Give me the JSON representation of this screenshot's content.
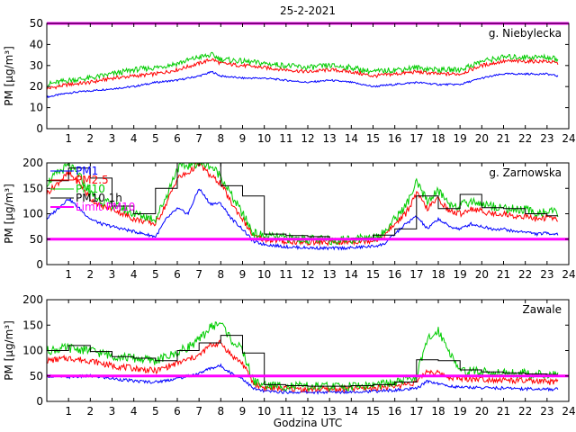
{
  "title": "25-2-2021",
  "xlabel": "Godzina UTC",
  "colors": {
    "PM1": "#0000ff",
    "PM2.5": "#ff0000",
    "PM10": "#00cc00",
    "PM10_1h": "#000000",
    "limit": "#ff00ff"
  },
  "chart_data": [
    {
      "type": "line",
      "station": "g. Niebylecka",
      "ylabel": "PM [µg/m³]",
      "ylim": [
        0,
        50
      ],
      "yticks": [
        0,
        10,
        20,
        30,
        40,
        50
      ],
      "xlim": [
        0,
        24
      ],
      "xticks": [
        1,
        2,
        3,
        4,
        5,
        6,
        7,
        8,
        9,
        10,
        11,
        12,
        13,
        14,
        15,
        16,
        17,
        18,
        19,
        20,
        21,
        22,
        23,
        24
      ],
      "limit_line": 50,
      "series": [
        {
          "name": "PM1",
          "color": "#0000ff",
          "x": [
            0,
            1,
            2,
            3,
            4,
            5,
            6,
            7,
            7.6,
            8,
            9,
            10,
            11,
            12,
            13,
            14,
            15,
            16,
            17,
            18,
            19,
            20,
            21,
            22,
            23,
            23.5
          ],
          "values": [
            15,
            17,
            18,
            19,
            20,
            22,
            23,
            25,
            27,
            25,
            24,
            24,
            23,
            22,
            23,
            22,
            20,
            21,
            22,
            21,
            21,
            24,
            26,
            26,
            26,
            25
          ]
        },
        {
          "name": "PM2.5",
          "color": "#ff0000",
          "x": [
            0,
            1,
            2,
            3,
            4,
            5,
            6,
            7,
            7.6,
            8,
            9,
            10,
            11,
            12,
            13,
            14,
            15,
            16,
            17,
            18,
            19,
            20,
            21,
            22,
            23,
            23.5
          ],
          "values": [
            19,
            21,
            22,
            24,
            25,
            26,
            28,
            31,
            33,
            31,
            30,
            29,
            28,
            27,
            28,
            27,
            25,
            26,
            27,
            26,
            26,
            30,
            32,
            32,
            32,
            31
          ]
        },
        {
          "name": "PM10",
          "color": "#00cc00",
          "x": [
            0,
            1,
            2,
            3,
            4,
            5,
            6,
            7,
            7.6,
            8,
            9,
            10,
            11,
            12,
            13,
            14,
            15,
            16,
            17,
            18,
            19,
            20,
            21,
            22,
            23,
            23.5
          ],
          "values": [
            21,
            23,
            24,
            26,
            28,
            29,
            31,
            34,
            35,
            33,
            32,
            31,
            30,
            29,
            30,
            29,
            27,
            28,
            29,
            28,
            28,
            32,
            34,
            34,
            34,
            33
          ]
        }
      ]
    },
    {
      "type": "line",
      "station": "g. Zarnowska",
      "ylabel": "PM [µg/m³]",
      "ylim": [
        0,
        200
      ],
      "yticks": [
        0,
        50,
        100,
        150,
        200
      ],
      "xlim": [
        0,
        24
      ],
      "xticks": [
        1,
        2,
        3,
        4,
        5,
        6,
        7,
        8,
        9,
        10,
        11,
        12,
        13,
        14,
        15,
        16,
        17,
        18,
        19,
        20,
        21,
        22,
        23,
        24
      ],
      "limit_line": 50,
      "legend": [
        "PM1",
        "PM2.5",
        "PM10",
        "PM10 1h",
        "Limit PM10"
      ],
      "series": [
        {
          "name": "PM1",
          "color": "#0000ff",
          "x": [
            0,
            0.5,
            1,
            1.5,
            2,
            2.5,
            3,
            3.5,
            4,
            4.5,
            5,
            5.5,
            6,
            6.5,
            7,
            7.5,
            8,
            8.5,
            9,
            9.5,
            10,
            11,
            12,
            13,
            14,
            15,
            15.5,
            16,
            16.5,
            17,
            17.5,
            18,
            18.5,
            19,
            19.5,
            20,
            20.5,
            21,
            21.5,
            22,
            22.5,
            23,
            23.5
          ],
          "values": [
            90,
            110,
            130,
            110,
            90,
            80,
            75,
            70,
            65,
            60,
            55,
            90,
            110,
            100,
            150,
            120,
            120,
            90,
            70,
            45,
            40,
            35,
            33,
            32,
            33,
            36,
            40,
            60,
            80,
            95,
            70,
            90,
            75,
            70,
            80,
            75,
            70,
            70,
            65,
            65,
            60,
            62,
            60
          ]
        },
        {
          "name": "PM2.5",
          "color": "#ff0000",
          "x": [
            0,
            0.5,
            1,
            1.5,
            2,
            2.5,
            3,
            3.5,
            4,
            4.5,
            5,
            5.5,
            6,
            6.5,
            7,
            7.5,
            8,
            8.5,
            9,
            9.5,
            10,
            11,
            12,
            13,
            14,
            15,
            15.5,
            16,
            16.5,
            17,
            17.5,
            18,
            18.5,
            19,
            19.5,
            20,
            20.5,
            21,
            21.5,
            22,
            22.5,
            23,
            23.5
          ],
          "values": [
            140,
            160,
            180,
            160,
            130,
            115,
            110,
            100,
            90,
            85,
            80,
            120,
            170,
            180,
            200,
            175,
            160,
            120,
            90,
            55,
            50,
            45,
            44,
            43,
            45,
            48,
            55,
            80,
            100,
            140,
            110,
            130,
            105,
            100,
            110,
            105,
            100,
            100,
            95,
            95,
            90,
            92,
            90
          ]
        },
        {
          "name": "PM10",
          "color": "#00cc00",
          "x": [
            0,
            0.5,
            1,
            1.5,
            2,
            2.5,
            3,
            3.5,
            4,
            4.5,
            5,
            5.5,
            6,
            6.5,
            7,
            7.5,
            8,
            8.5,
            9,
            9.5,
            10,
            11,
            12,
            13,
            14,
            15,
            15.5,
            16,
            16.5,
            17,
            17.5,
            18,
            18.5,
            19,
            19.5,
            20,
            20.5,
            21,
            21.5,
            22,
            22.5,
            23,
            23.5
          ],
          "values": [
            160,
            180,
            195,
            175,
            140,
            125,
            118,
            110,
            100,
            95,
            90,
            135,
            190,
            195,
            200,
            195,
            175,
            135,
            100,
            62,
            56,
            52,
            50,
            48,
            50,
            54,
            62,
            90,
            115,
            160,
            125,
            145,
            120,
            115,
            125,
            120,
            115,
            112,
            108,
            108,
            102,
            104,
            102
          ]
        },
        {
          "name": "PM10 1h",
          "color": "#000000",
          "step": true,
          "x": [
            0,
            1,
            2,
            3,
            4,
            5,
            6,
            7,
            8,
            9,
            10,
            11,
            12,
            13,
            14,
            15,
            16,
            17,
            18,
            19,
            20,
            21,
            22,
            23,
            23.5
          ],
          "values": [
            165,
            190,
            170,
            115,
            100,
            150,
            200,
            205,
            155,
            135,
            60,
            57,
            55,
            50,
            52,
            58,
            70,
            135,
            110,
            138,
            112,
            110,
            100,
            96,
            96
          ]
        }
      ]
    },
    {
      "type": "line",
      "station": "Zawale",
      "ylabel": "PM [µg/m³]",
      "ylim": [
        0,
        200
      ],
      "yticks": [
        0,
        50,
        100,
        150,
        200
      ],
      "xlim": [
        0,
        24
      ],
      "xticks": [
        1,
        2,
        3,
        4,
        5,
        6,
        7,
        8,
        9,
        10,
        11,
        12,
        13,
        14,
        15,
        16,
        17,
        18,
        19,
        20,
        21,
        22,
        23,
        24
      ],
      "limit_line": 50,
      "series": [
        {
          "name": "PM1",
          "color": "#0000ff",
          "x": [
            0,
            1,
            2,
            3,
            4,
            5,
            6,
            7,
            7.5,
            8,
            8.5,
            9,
            9.5,
            10,
            11,
            12,
            13,
            14,
            15,
            16,
            17,
            17.5,
            18,
            18.5,
            19,
            20,
            21,
            22,
            23,
            23.5
          ],
          "values": [
            50,
            48,
            50,
            45,
            40,
            38,
            45,
            55,
            65,
            70,
            55,
            45,
            25,
            20,
            18,
            18,
            18,
            19,
            20,
            22,
            25,
            40,
            35,
            30,
            28,
            27,
            26,
            25,
            24,
            24
          ]
        },
        {
          "name": "PM2.5",
          "color": "#ff0000",
          "x": [
            0,
            1,
            2,
            3,
            4,
            5,
            6,
            7,
            7.5,
            8,
            8.5,
            9,
            9.5,
            10,
            11,
            12,
            13,
            14,
            15,
            16,
            17,
            17.5,
            18,
            18.5,
            19,
            20,
            21,
            22,
            23,
            23.5
          ],
          "values": [
            80,
            85,
            80,
            70,
            65,
            60,
            75,
            90,
            110,
            115,
            90,
            75,
            35,
            27,
            25,
            24,
            24,
            25,
            27,
            30,
            38,
            60,
            55,
            48,
            45,
            44,
            42,
            40,
            38,
            38
          ]
        },
        {
          "name": "PM10",
          "color": "#00cc00",
          "x": [
            0,
            1,
            2,
            3,
            4,
            5,
            6,
            7,
            7.5,
            8,
            8.5,
            9,
            9.5,
            10,
            11,
            12,
            13,
            14,
            15,
            16,
            17,
            17.5,
            18,
            18.5,
            19,
            20,
            21,
            22,
            23,
            23.5
          ],
          "values": [
            100,
            105,
            100,
            90,
            85,
            80,
            95,
            120,
            145,
            155,
            120,
            100,
            40,
            32,
            30,
            29,
            29,
            30,
            32,
            36,
            50,
            120,
            140,
            100,
            60,
            58,
            56,
            55,
            52,
            50
          ]
        },
        {
          "name": "PM10 1h",
          "color": "#000000",
          "step": true,
          "x": [
            0,
            1,
            2,
            3,
            4,
            5,
            6,
            7,
            8,
            9,
            10,
            11,
            12,
            13,
            14,
            15,
            16,
            17,
            18,
            19,
            20,
            21,
            22,
            23,
            23.5
          ],
          "values": [
            100,
            110,
            98,
            88,
            85,
            80,
            100,
            115,
            130,
            95,
            33,
            31,
            30,
            30,
            31,
            33,
            38,
            82,
            80,
            62,
            58,
            56,
            54,
            53,
            53
          ]
        }
      ]
    }
  ]
}
